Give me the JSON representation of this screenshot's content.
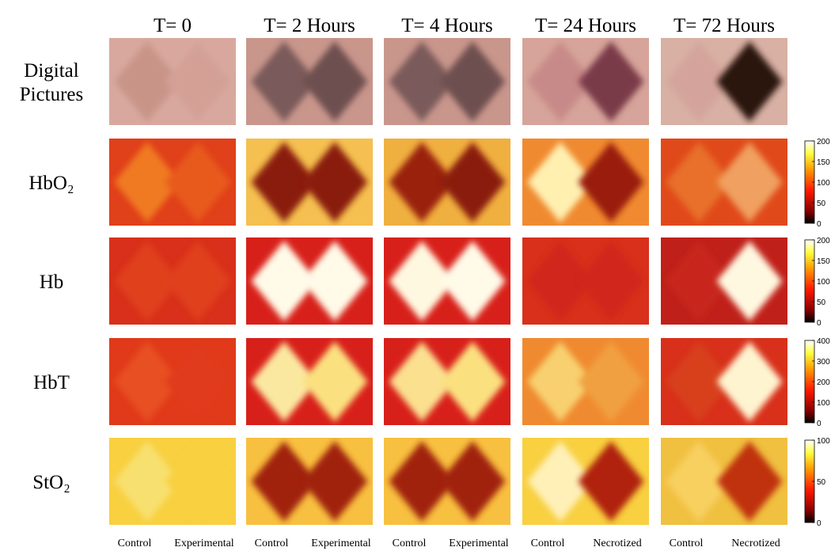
{
  "columns": [
    {
      "header": "T= 0",
      "footer": [
        "Control",
        "Experimental"
      ]
    },
    {
      "header": "T= 2 Hours",
      "footer": [
        "Control",
        "Experimental"
      ]
    },
    {
      "header": "T= 4 Hours",
      "footer": [
        "Control",
        "Experimental"
      ]
    },
    {
      "header": "T= 24 Hours",
      "footer": [
        "Control",
        "Necrotized"
      ]
    },
    {
      "header": "T= 72 Hours",
      "footer": [
        "Control",
        "Necrotized"
      ]
    }
  ],
  "rows": [
    {
      "label": "Digital Pictures"
    },
    {
      "label": "HbO₂",
      "colorbar": {
        "lim": [
          0,
          200
        ],
        "ticks": [
          0,
          50,
          100,
          150,
          200
        ]
      }
    },
    {
      "label": "Hb",
      "colorbar": {
        "lim": [
          0,
          200
        ],
        "ticks": [
          0,
          50,
          100,
          150,
          200
        ]
      }
    },
    {
      "label": "HbT",
      "colorbar": {
        "lim": [
          0,
          400
        ],
        "ticks": [
          0,
          100,
          200,
          300,
          400
        ]
      }
    },
    {
      "label": "StO₂",
      "colorbar": {
        "lim": [
          0,
          100
        ],
        "ticks": [
          0,
          50,
          100
        ]
      }
    }
  ]
}
